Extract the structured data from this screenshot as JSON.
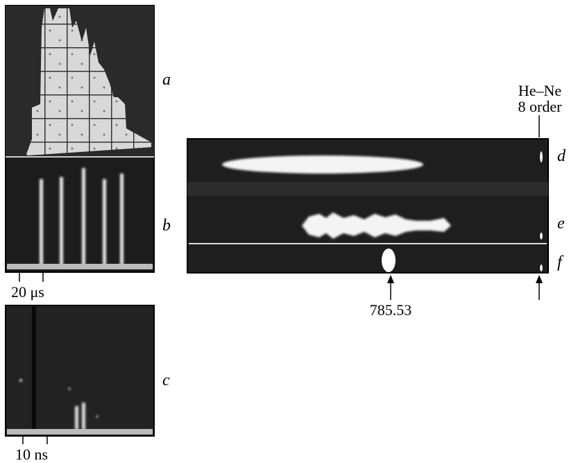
{
  "panel_labels": {
    "a": "a",
    "b": "b",
    "c": "c",
    "d": "d",
    "e": "e",
    "f": "f"
  },
  "time_scales": {
    "b": "20 μs",
    "c": "10 ns"
  },
  "spectral_markers": {
    "line": "785.53",
    "reference": [
      "He–Ne",
      "8 order"
    ]
  }
}
